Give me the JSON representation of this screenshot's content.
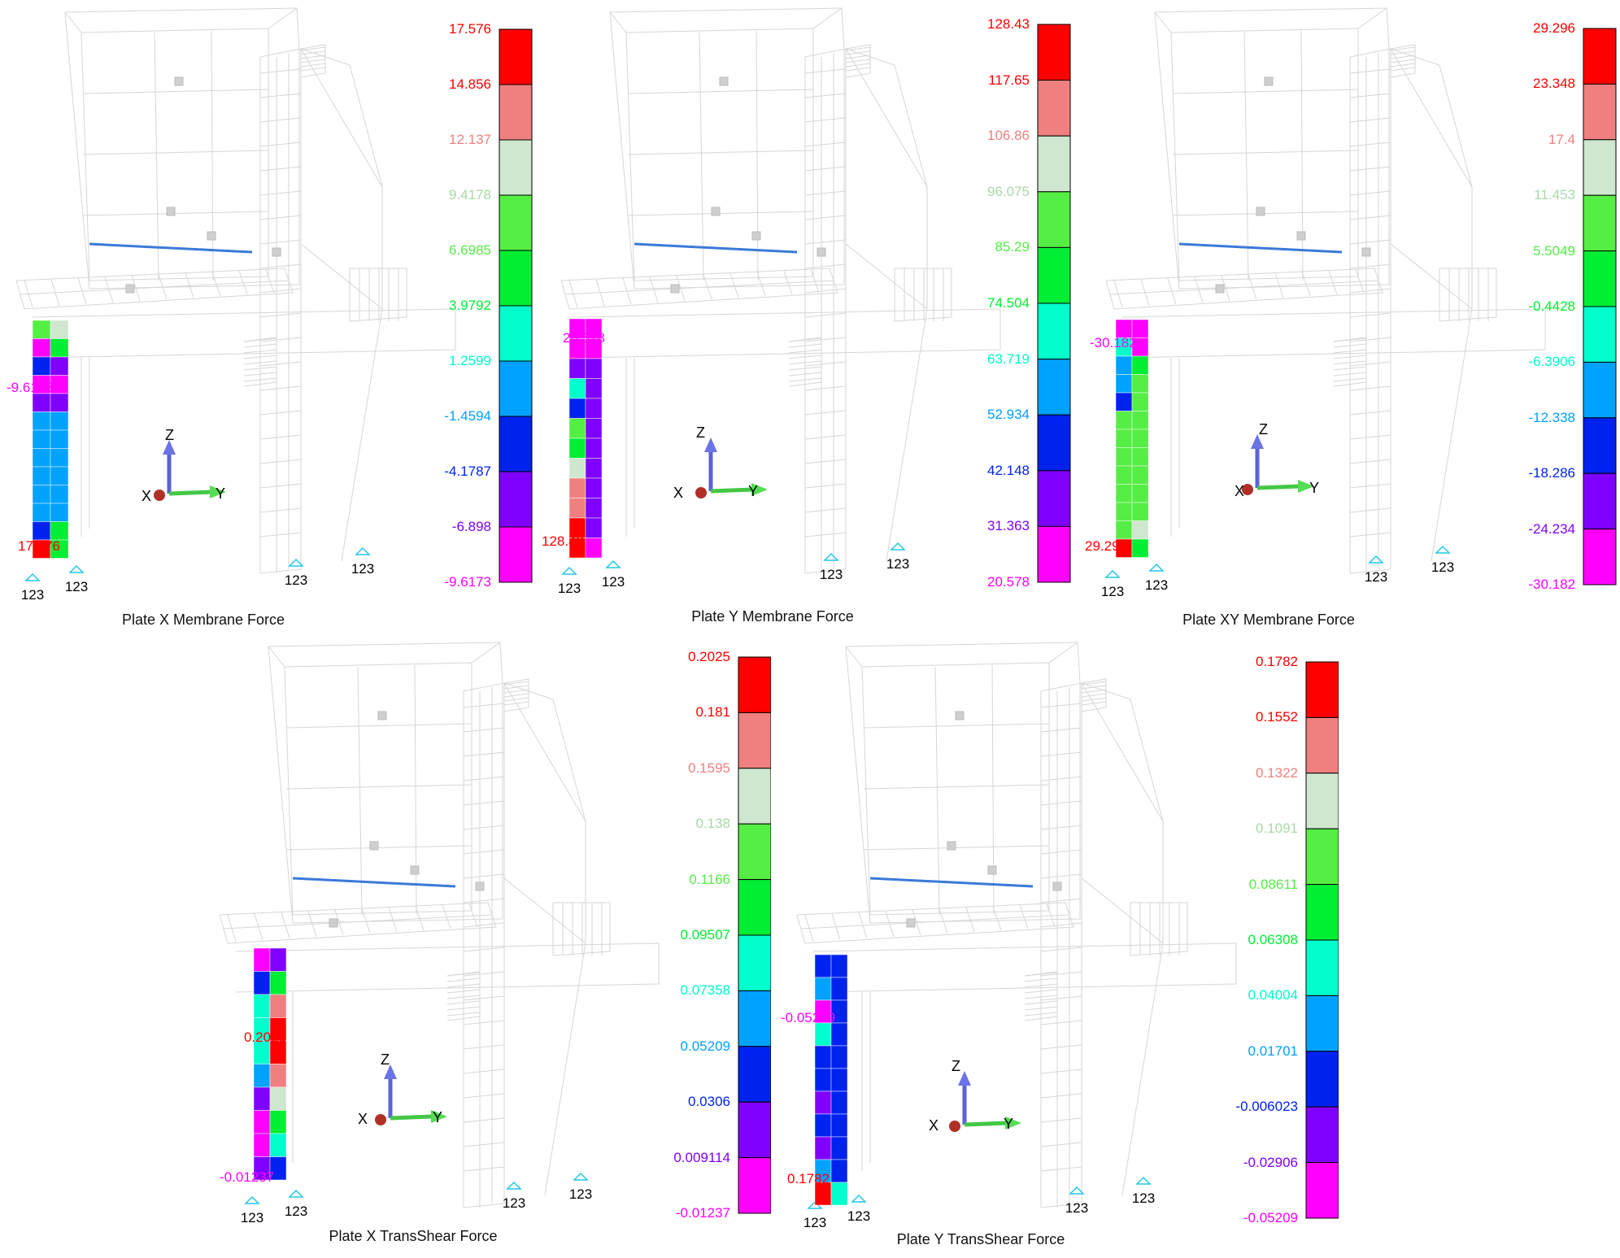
{
  "palette": [
    "#ff00ff",
    "#7f00ff",
    "#0022ee",
    "#00a2ff",
    "#00ffcc",
    "#00ee33",
    "#55ee44",
    "#cfe6cf",
    "#f08080",
    "#ff0000"
  ],
  "axes": {
    "z": "Z",
    "x": "X",
    "y": "Y"
  },
  "support_label": "123",
  "panels": [
    {
      "id": "plate-x-membrane",
      "caption": "Plate X Membrane Force",
      "legend": [
        "17.576",
        "14.856",
        "12.137",
        "9.4178",
        "6.6985",
        "3.9792",
        "1.2599",
        "-1.4594",
        "-4.1787",
        "-6.898",
        "-9.6173"
      ],
      "min_label": "-9.6173",
      "max_label": "17.576",
      "plate": [
        [
          6,
          7
        ],
        [
          0,
          5
        ],
        [
          2,
          1
        ],
        [
          0,
          0
        ],
        [
          1,
          1
        ],
        [
          3,
          3
        ],
        [
          3,
          3
        ],
        [
          3,
          3
        ],
        [
          3,
          3
        ],
        [
          3,
          3
        ],
        [
          3,
          3
        ],
        [
          2,
          5
        ],
        [
          9,
          5
        ]
      ]
    },
    {
      "id": "plate-y-membrane",
      "caption": "Plate Y Membrane Force",
      "legend": [
        "128.43",
        "117.65",
        "106.86",
        "96.075",
        "85.29",
        "74.504",
        "63.719",
        "52.934",
        "42.148",
        "31.363",
        "20.578"
      ],
      "min_label": "20.578",
      "max_label": "128.43",
      "plate": [
        [
          0,
          0
        ],
        [
          0,
          0
        ],
        [
          1,
          1
        ],
        [
          4,
          1
        ],
        [
          2,
          1
        ],
        [
          6,
          1
        ],
        [
          5,
          1
        ],
        [
          7,
          1
        ],
        [
          8,
          1
        ],
        [
          8,
          1
        ],
        [
          9,
          1
        ],
        [
          9,
          0
        ]
      ]
    },
    {
      "id": "plate-xy-membrane",
      "caption": "Plate XY Membrane Force",
      "legend": [
        "29.296",
        "23.348",
        "17.4",
        "11.453",
        "5.5049",
        "-0.4428",
        "-6.3906",
        "-12.338",
        "-18.286",
        "-24.234",
        "-30.182"
      ],
      "min_label": "-30.182",
      "max_label": "29.296",
      "plate": [
        [
          0,
          0
        ],
        [
          4,
          0
        ],
        [
          3,
          5
        ],
        [
          3,
          6
        ],
        [
          2,
          6
        ],
        [
          6,
          6
        ],
        [
          6,
          6
        ],
        [
          6,
          6
        ],
        [
          6,
          6
        ],
        [
          6,
          6
        ],
        [
          6,
          6
        ],
        [
          6,
          7
        ],
        [
          9,
          5
        ]
      ]
    },
    {
      "id": "plate-x-transshear",
      "caption": "Plate X TransShear Force",
      "legend": [
        "0.2025",
        "0.181",
        "0.1595",
        "0.138",
        "0.1166",
        "0.09507",
        "0.07358",
        "0.05209",
        "0.0306",
        "0.009114",
        "-0.01237"
      ],
      "min_label": "-0.01237",
      "max_label": "0.2025",
      "plate": [
        [
          0,
          1
        ],
        [
          2,
          5
        ],
        [
          4,
          8
        ],
        [
          4,
          9
        ],
        [
          4,
          9
        ],
        [
          3,
          8
        ],
        [
          1,
          7
        ],
        [
          0,
          5
        ],
        [
          0,
          4
        ],
        [
          1,
          2
        ]
      ]
    },
    {
      "id": "plate-y-transshear",
      "caption": "Plate Y TransShear Force",
      "legend": [
        "0.1782",
        "0.1552",
        "0.1322",
        "0.1091",
        "0.08611",
        "0.06308",
        "0.04004",
        "0.01701",
        "-0.006023",
        "-0.02906",
        "-0.05209"
      ],
      "min_label": "-0.05209",
      "max_label": "0.1782",
      "plate": [
        [
          2,
          2
        ],
        [
          3,
          2
        ],
        [
          0,
          2
        ],
        [
          4,
          2
        ],
        [
          2,
          2
        ],
        [
          2,
          2
        ],
        [
          1,
          2
        ],
        [
          2,
          2
        ],
        [
          1,
          2
        ],
        [
          3,
          2
        ],
        [
          9,
          4
        ]
      ]
    }
  ]
}
